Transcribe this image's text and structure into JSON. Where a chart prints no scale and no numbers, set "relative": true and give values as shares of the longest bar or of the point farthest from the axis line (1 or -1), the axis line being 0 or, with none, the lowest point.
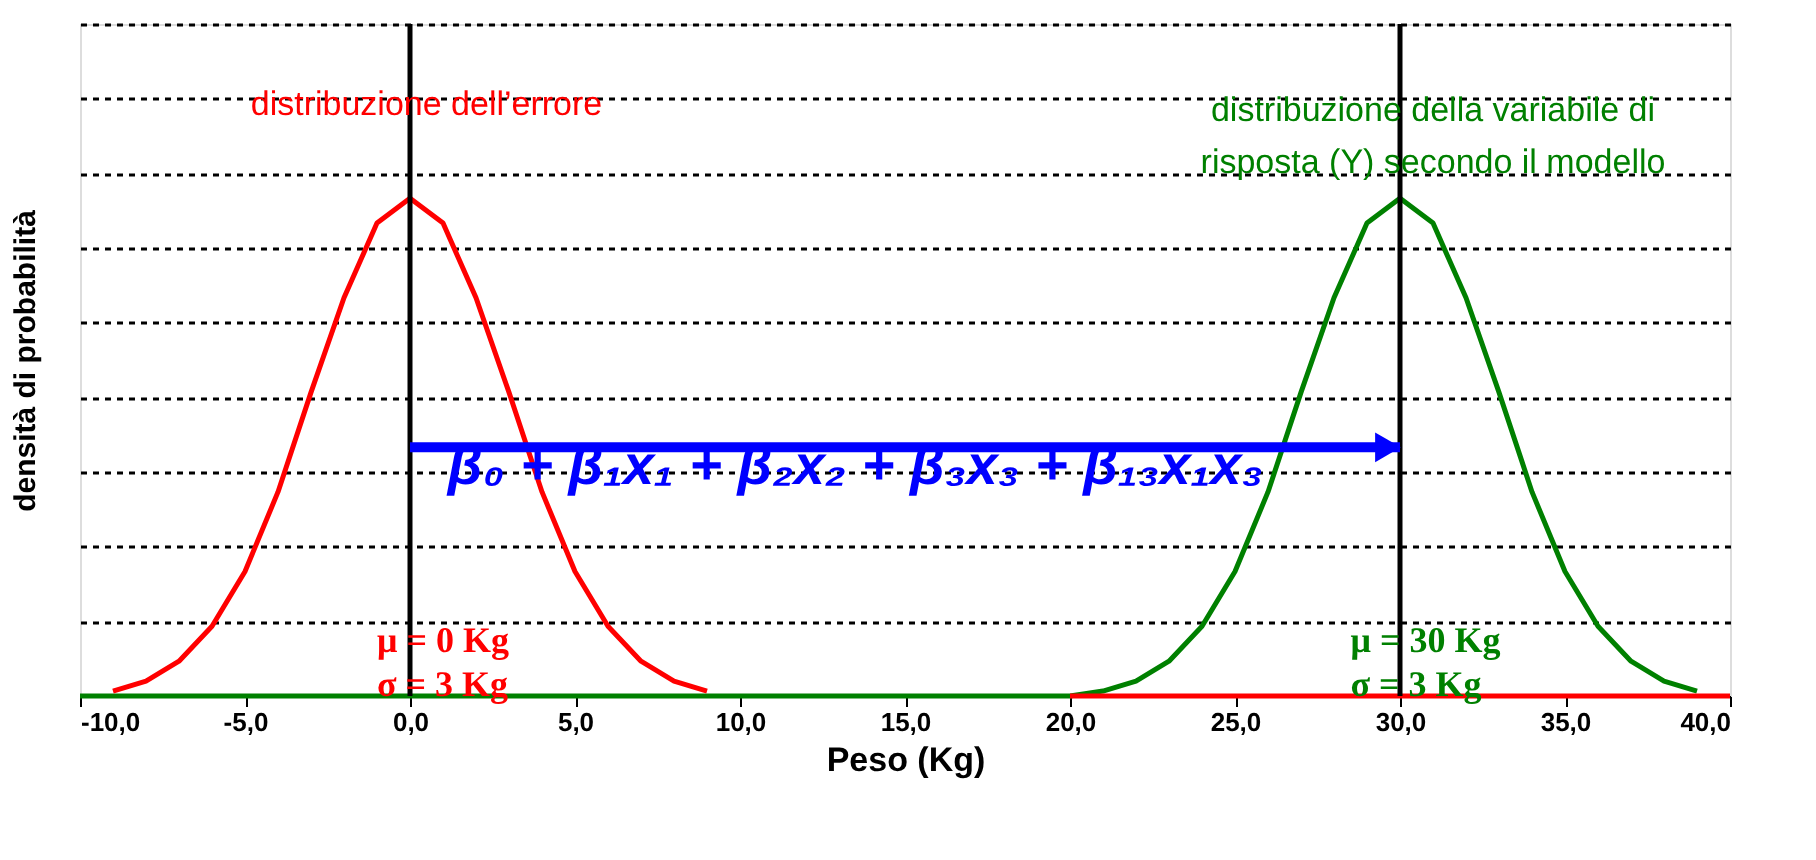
{
  "chart_data": {
    "type": "line",
    "relative": true,
    "xlabel": "Peso (Kg)",
    "ylabel": "densità di probabilità",
    "xlim": [
      -10,
      40
    ],
    "xticks": [
      {
        "value": -10,
        "label": "-10,0"
      },
      {
        "value": -5,
        "label": "-5,0"
      },
      {
        "value": 0,
        "label": "0,0"
      },
      {
        "value": 5,
        "label": "5,0"
      },
      {
        "value": 10,
        "label": "10,0"
      },
      {
        "value": 15,
        "label": "15,0"
      },
      {
        "value": 20,
        "label": "20,0"
      },
      {
        "value": 25,
        "label": "25,0"
      },
      {
        "value": 30,
        "label": "30,0"
      },
      {
        "value": 35,
        "label": "35,0"
      },
      {
        "value": 40,
        "label": "40,0"
      }
    ],
    "x": [
      -10,
      -9,
      -8,
      -7,
      -6,
      -5,
      -4,
      -3,
      -2,
      -1,
      0,
      1,
      2,
      3,
      4,
      5,
      6,
      7,
      8,
      9,
      10,
      11,
      12,
      13,
      14,
      15,
      16,
      17,
      18,
      19,
      20,
      21,
      22,
      23,
      24,
      25,
      26,
      27,
      28,
      29,
      30,
      31,
      32,
      33,
      34,
      35,
      36,
      37,
      38,
      39,
      40
    ],
    "series": [
      {
        "color": "#008000",
        "values": [
          0,
          0,
          0,
          0,
          0,
          0,
          0,
          0,
          0,
          0,
          0,
          0,
          0,
          0,
          0,
          0,
          0,
          0,
          0,
          0,
          0,
          0,
          0,
          0,
          0,
          0,
          0,
          0,
          0,
          0,
          0,
          0.01,
          0.03,
          0.07,
          0.14,
          0.25,
          0.41,
          0.61,
          0.8,
          0.95,
          1,
          0.95,
          0.8,
          0.61,
          0.41,
          0.25,
          0.14,
          0.07,
          0.03,
          0.01,
          null
        ]
      },
      {
        "color": "#ff0000",
        "values": [
          null,
          0.01,
          0.03,
          0.07,
          0.14,
          0.25,
          0.41,
          0.61,
          0.8,
          0.95,
          1,
          0.95,
          0.8,
          0.61,
          0.41,
          0.25,
          0.14,
          0.07,
          0.03,
          0.01,
          null,
          null,
          null,
          null,
          null,
          null,
          null,
          null,
          null,
          null,
          0,
          0,
          0,
          0,
          0,
          0,
          0,
          0,
          0,
          0,
          0,
          0,
          0,
          0,
          0,
          0,
          0,
          0,
          0,
          0,
          0
        ]
      }
    ],
    "ref_lines": [
      {
        "axis": "x",
        "value": 0,
        "color": "#000000"
      },
      {
        "axis": "x",
        "value": 30,
        "color": "#000000"
      }
    ],
    "annotations": [
      "distribuzione dell’errore",
      "distribuzione della variabile di\nrisposta (Y) secondo il modello",
      "β₀ + β₁x₁ + β₂x₂ + β₃x₃ + β₁₃x₁x₃",
      "μ = 0 Kg",
      "σ = 3 Kg",
      "μ = 30 Kg",
      "σ = 3 Kg"
    ],
    "grid": "y",
    "marker": "none",
    "line_style": "solid"
  }
}
